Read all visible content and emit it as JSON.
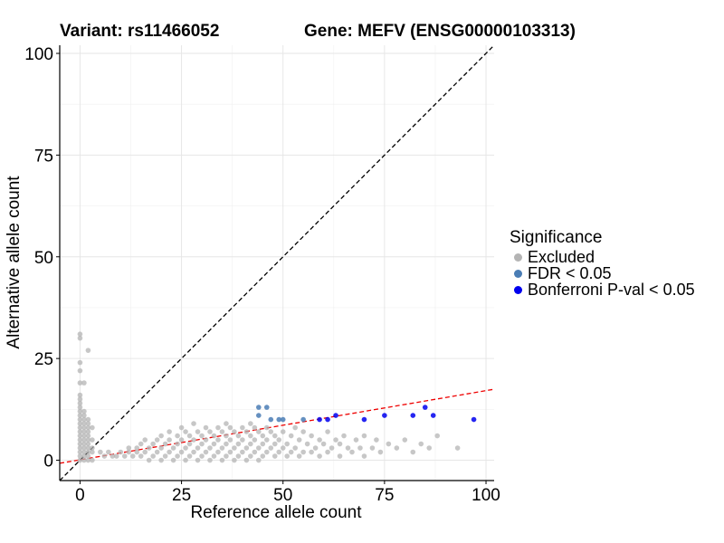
{
  "chart_data": {
    "type": "scatter",
    "title_left": "Variant: rs11466052",
    "title_right": "Gene: MEFV (ENSG00000103313)",
    "xlabel": "Reference allele count",
    "ylabel": "Alternative allele count",
    "xlim": [
      -5,
      102
    ],
    "ylim": [
      -5,
      102
    ],
    "xticks": [
      0,
      25,
      50,
      75,
      100
    ],
    "yticks": [
      0,
      25,
      50,
      75,
      100
    ],
    "grid": true,
    "legend": {
      "title": "Significance",
      "placement": "right",
      "entries": [
        {
          "label": "Excluded",
          "color": "#b4b4b4"
        },
        {
          "label": "FDR < 0.05",
          "color": "#4a7db5"
        },
        {
          "label": "Bonferroni P-val < 0.05",
          "color": "#0000ee"
        }
      ]
    },
    "reference_lines": [
      {
        "name": "identity",
        "color": "#000000",
        "style": "dashed",
        "slope": 1,
        "intercept": 0
      },
      {
        "name": "fit",
        "color": "#ee0000",
        "style": "dashed",
        "slope": 0.17,
        "intercept": 0.1
      }
    ],
    "series": [
      {
        "name": "Excluded",
        "color": "#b4b4b4",
        "points": [
          [
            0,
            31
          ],
          [
            0,
            30
          ],
          [
            2,
            27
          ],
          [
            0,
            24
          ],
          [
            0,
            22
          ],
          [
            0,
            19
          ],
          [
            1,
            19
          ],
          [
            0,
            16
          ],
          [
            0,
            15
          ],
          [
            0,
            14
          ],
          [
            0,
            13
          ],
          [
            0,
            12
          ],
          [
            1,
            12
          ],
          [
            0,
            11
          ],
          [
            1,
            11
          ],
          [
            0,
            10
          ],
          [
            1,
            10
          ],
          [
            2,
            10
          ],
          [
            0,
            9
          ],
          [
            1,
            9
          ],
          [
            2,
            9
          ],
          [
            0,
            8
          ],
          [
            1,
            8
          ],
          [
            2,
            8
          ],
          [
            3,
            8
          ],
          [
            0,
            7
          ],
          [
            1,
            7
          ],
          [
            2,
            7
          ],
          [
            0,
            6
          ],
          [
            1,
            6
          ],
          [
            2,
            6
          ],
          [
            0,
            5
          ],
          [
            1,
            5
          ],
          [
            2,
            5
          ],
          [
            3,
            5
          ],
          [
            0,
            4
          ],
          [
            1,
            4
          ],
          [
            2,
            4
          ],
          [
            0,
            3
          ],
          [
            1,
            3
          ],
          [
            2,
            3
          ],
          [
            3,
            3
          ],
          [
            0,
            2
          ],
          [
            1,
            2
          ],
          [
            2,
            2
          ],
          [
            3,
            2
          ],
          [
            0,
            1
          ],
          [
            1,
            1
          ],
          [
            2,
            1
          ],
          [
            0,
            0
          ],
          [
            1,
            0
          ],
          [
            2,
            0
          ],
          [
            3,
            0
          ],
          [
            5,
            2
          ],
          [
            6,
            1
          ],
          [
            7,
            2
          ],
          [
            8,
            1
          ],
          [
            9,
            1
          ],
          [
            10,
            2
          ],
          [
            11,
            1
          ],
          [
            12,
            2
          ],
          [
            12,
            3
          ],
          [
            13,
            1
          ],
          [
            14,
            2
          ],
          [
            14,
            3
          ],
          [
            15,
            1
          ],
          [
            15,
            4
          ],
          [
            16,
            2
          ],
          [
            16,
            5
          ],
          [
            17,
            0
          ],
          [
            17,
            3
          ],
          [
            18,
            1
          ],
          [
            18,
            4
          ],
          [
            19,
            2
          ],
          [
            19,
            5
          ],
          [
            20,
            0
          ],
          [
            20,
            3
          ],
          [
            20,
            6
          ],
          [
            21,
            1
          ],
          [
            21,
            4
          ],
          [
            22,
            2
          ],
          [
            22,
            5
          ],
          [
            22,
            7
          ],
          [
            23,
            0
          ],
          [
            23,
            3
          ],
          [
            24,
            1
          ],
          [
            24,
            4
          ],
          [
            24,
            6
          ],
          [
            25,
            2
          ],
          [
            25,
            5
          ],
          [
            25,
            8
          ],
          [
            26,
            0
          ],
          [
            26,
            3
          ],
          [
            26,
            7
          ],
          [
            27,
            1
          ],
          [
            27,
            4
          ],
          [
            27,
            6
          ],
          [
            28,
            2
          ],
          [
            28,
            5
          ],
          [
            28,
            9
          ],
          [
            29,
            0
          ],
          [
            29,
            3
          ],
          [
            29,
            7
          ],
          [
            30,
            1
          ],
          [
            30,
            4
          ],
          [
            30,
            6
          ],
          [
            31,
            2
          ],
          [
            31,
            5
          ],
          [
            31,
            8
          ],
          [
            32,
            0
          ],
          [
            32,
            3
          ],
          [
            32,
            7
          ],
          [
            33,
            1
          ],
          [
            33,
            4
          ],
          [
            33,
            6
          ],
          [
            34,
            2
          ],
          [
            34,
            5
          ],
          [
            34,
            8
          ],
          [
            35,
            0
          ],
          [
            35,
            3
          ],
          [
            35,
            7
          ],
          [
            36,
            1
          ],
          [
            36,
            4
          ],
          [
            36,
            6
          ],
          [
            36,
            9
          ],
          [
            37,
            2
          ],
          [
            37,
            5
          ],
          [
            37,
            8
          ],
          [
            38,
            0
          ],
          [
            38,
            3
          ],
          [
            38,
            7
          ],
          [
            39,
            1
          ],
          [
            39,
            4
          ],
          [
            39,
            6
          ],
          [
            40,
            2
          ],
          [
            40,
            5
          ],
          [
            40,
            8
          ],
          [
            41,
            0
          ],
          [
            41,
            3
          ],
          [
            41,
            7
          ],
          [
            42,
            1
          ],
          [
            42,
            4
          ],
          [
            42,
            6
          ],
          [
            42,
            9
          ],
          [
            43,
            2
          ],
          [
            43,
            5
          ],
          [
            43,
            8
          ],
          [
            44,
            0
          ],
          [
            44,
            3
          ],
          [
            44,
            7
          ],
          [
            45,
            1
          ],
          [
            45,
            4
          ],
          [
            45,
            6
          ],
          [
            46,
            2
          ],
          [
            46,
            5
          ],
          [
            46,
            8
          ],
          [
            47,
            3
          ],
          [
            47,
            7
          ],
          [
            48,
            1
          ],
          [
            48,
            4
          ],
          [
            48,
            6
          ],
          [
            49,
            2
          ],
          [
            49,
            5
          ],
          [
            50,
            3
          ],
          [
            50,
            7
          ],
          [
            51,
            1
          ],
          [
            51,
            4
          ],
          [
            52,
            2
          ],
          [
            52,
            6
          ],
          [
            53,
            3
          ],
          [
            53,
            8
          ],
          [
            54,
            1
          ],
          [
            54,
            5
          ],
          [
            55,
            2
          ],
          [
            55,
            7
          ],
          [
            56,
            4
          ],
          [
            57,
            2
          ],
          [
            57,
            6
          ],
          [
            58,
            3
          ],
          [
            59,
            1
          ],
          [
            59,
            5
          ],
          [
            60,
            4
          ],
          [
            61,
            2
          ],
          [
            61,
            7
          ],
          [
            62,
            3
          ],
          [
            63,
            5
          ],
          [
            64,
            1
          ],
          [
            64,
            4
          ],
          [
            65,
            6
          ],
          [
            66,
            3
          ],
          [
            67,
            2
          ],
          [
            68,
            5
          ],
          [
            69,
            3
          ],
          [
            70,
            1
          ],
          [
            70,
            6
          ],
          [
            72,
            3
          ],
          [
            73,
            5
          ],
          [
            74,
            2
          ],
          [
            76,
            4
          ],
          [
            78,
            3
          ],
          [
            80,
            5
          ],
          [
            82,
            2
          ],
          [
            84,
            4
          ],
          [
            86,
            3
          ],
          [
            88,
            6
          ],
          [
            93,
            3
          ]
        ]
      },
      {
        "name": "FDR < 0.05",
        "color": "#4a7db5",
        "points": [
          [
            44,
            13
          ],
          [
            46,
            13
          ],
          [
            44,
            11
          ],
          [
            47,
            10
          ],
          [
            49,
            10
          ],
          [
            50,
            10
          ],
          [
            55,
            10
          ]
        ]
      },
      {
        "name": "Bonferroni P-val < 0.05",
        "color": "#0000ee",
        "points": [
          [
            59,
            10
          ],
          [
            61,
            10
          ],
          [
            63,
            11
          ],
          [
            70,
            10
          ],
          [
            75,
            11
          ],
          [
            82,
            11
          ],
          [
            85,
            13
          ],
          [
            87,
            11
          ],
          [
            97,
            10
          ]
        ]
      }
    ]
  }
}
